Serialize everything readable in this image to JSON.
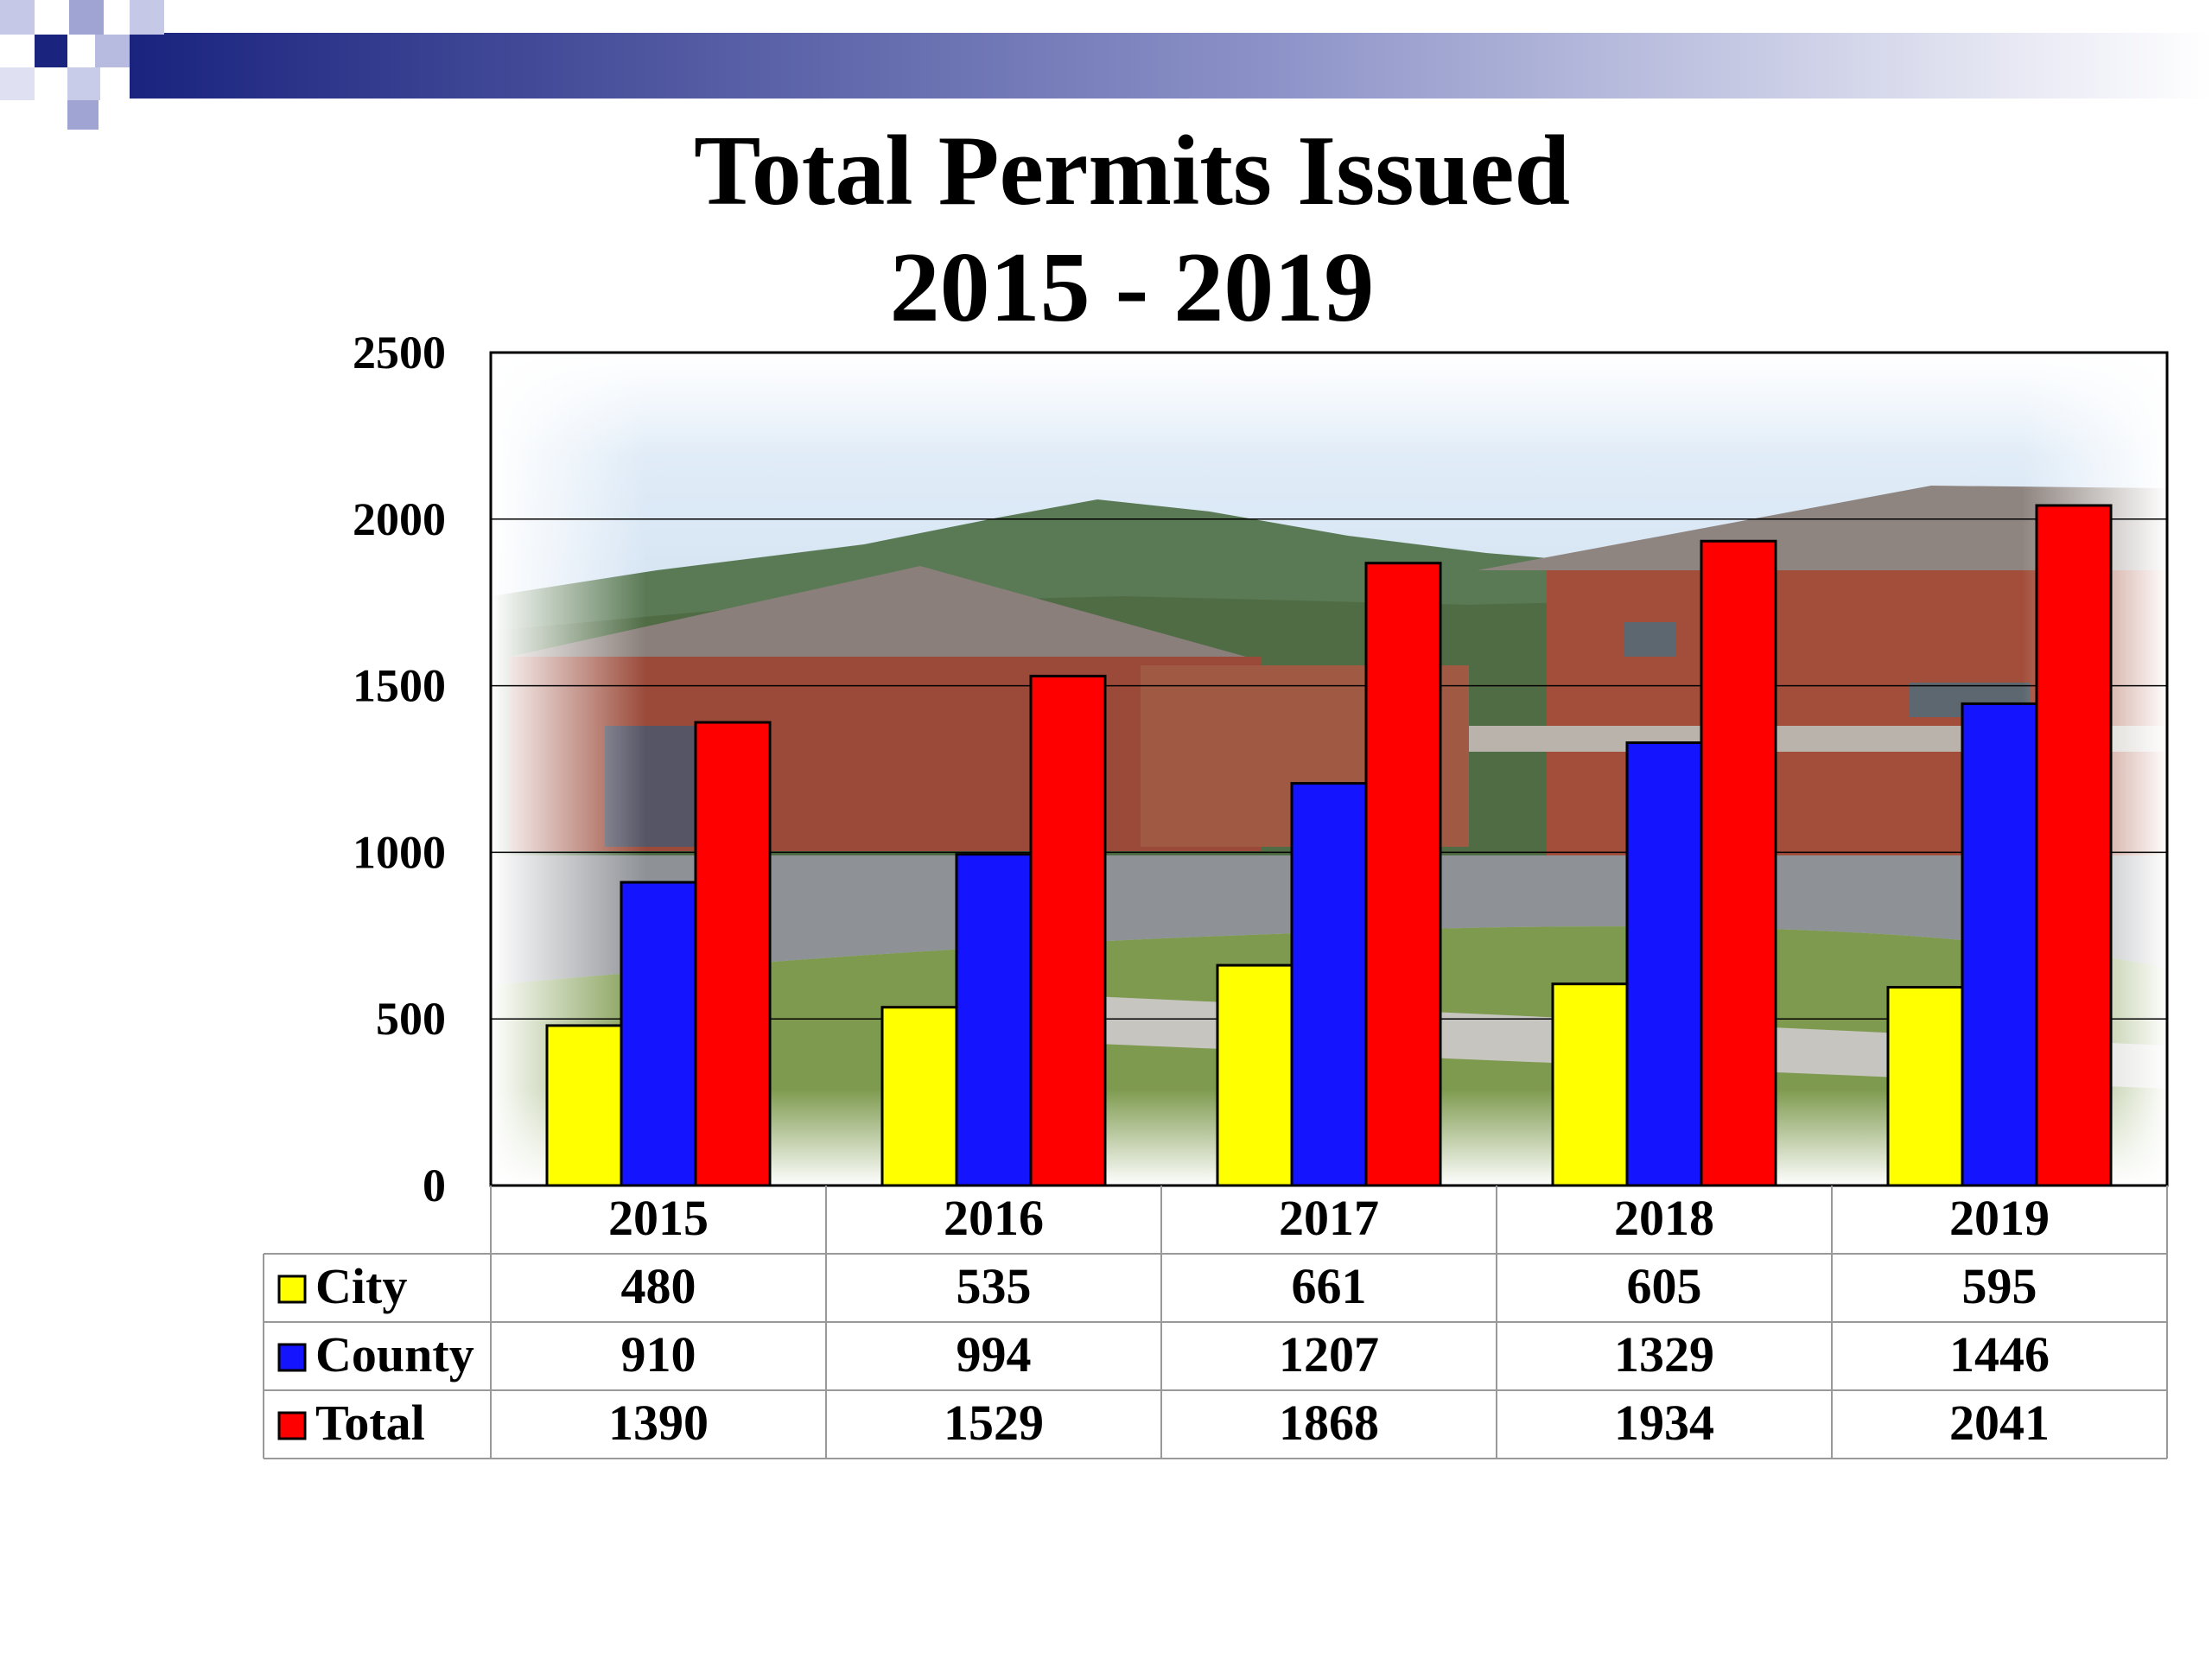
{
  "chart_data": {
    "type": "bar",
    "title": "Total Permits Issued",
    "subtitle": "2015 - 2019",
    "categories": [
      "2015",
      "2016",
      "2017",
      "2018",
      "2019"
    ],
    "series": [
      {
        "name": "City",
        "values": [
          480,
          535,
          661,
          605,
          595
        ],
        "color": "#FFFF00"
      },
      {
        "name": "County",
        "values": [
          910,
          994,
          1207,
          1329,
          1446
        ],
        "color": "#1414FF"
      },
      {
        "name": "Total",
        "values": [
          1390,
          1529,
          1868,
          1934,
          2041
        ],
        "color": "#FF0000"
      }
    ],
    "ylim": [
      0,
      2500
    ],
    "yticks": [
      0,
      500,
      1000,
      1500,
      2000,
      2500
    ],
    "grid": true,
    "legend": "data-table-left"
  }
}
